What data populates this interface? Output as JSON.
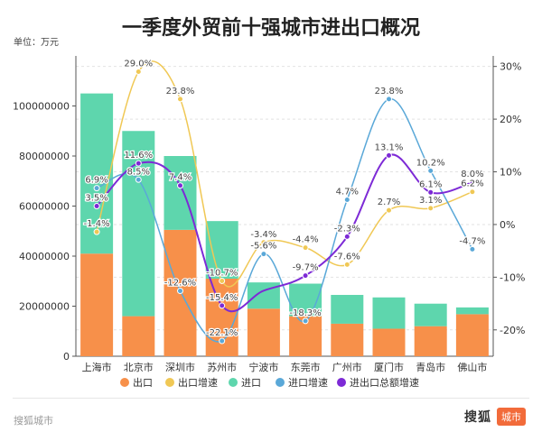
{
  "source": "搜狐城市",
  "brand": {
    "name": "搜狐",
    "tag": "城市"
  },
  "chart_data": {
    "type": "bar",
    "title": "一季度外贸前十强城市进出口概况",
    "unit_label": "单位：万元",
    "categories": [
      "上海市",
      "北京市",
      "深圳市",
      "苏州市",
      "宁波市",
      "东莞市",
      "广州市",
      "厦门市",
      "青岛市",
      "佛山市"
    ],
    "ylim": [
      0,
      120000000
    ],
    "y_ticks": [
      "0",
      "20000000",
      "40000000",
      "60000000",
      "80000000",
      "100000000"
    ],
    "y2lim": [
      -25,
      32
    ],
    "y2_ticks": [
      "-20%",
      "-10%",
      "0%",
      "10%",
      "20%",
      "30%"
    ],
    "colors": {
      "export": "#f7904a",
      "import": "#5ed6ad",
      "export_growth": "#f0c855",
      "import_growth": "#5aa8d8",
      "total_growth": "#7d2ad6"
    },
    "legend": [
      "出口",
      "出口增速",
      "进口",
      "进口增速",
      "进出口总额增速"
    ],
    "bars": [
      {
        "name": "出口",
        "values": [
          41000000,
          16000000,
          50500000,
          31000000,
          19000000,
          16000000,
          13000000,
          11000000,
          12000000,
          16800000
        ]
      },
      {
        "name": "进口",
        "values": [
          64000000,
          74000000,
          29500000,
          23000000,
          10500000,
          13000000,
          11500000,
          12500000,
          9000000,
          2700000
        ]
      }
    ],
    "lines": [
      {
        "name": "出口增速",
        "values": [
          -1.4,
          29.0,
          23.8,
          -10.7,
          -3.4,
          -4.4,
          -7.6,
          2.7,
          3.1,
          6.2
        ],
        "labels": [
          "-1.4%",
          "29.0%",
          "23.8%",
          "-10.7%",
          "-3.4%",
          "-4.4%",
          "-7.6%",
          "2.7%",
          "3.1%",
          "6.2%"
        ]
      },
      {
        "name": "进口增速",
        "values": [
          6.9,
          8.5,
          -12.6,
          -22.1,
          -5.6,
          -18.3,
          4.7,
          23.8,
          10.2,
          -4.7
        ],
        "labels": [
          "6.9%",
          "8.5%",
          "-12.6%",
          "-22.1%",
          "-5.6%",
          "-18.3%",
          "4.7%",
          "23.8%",
          "10.2%",
          "-4.7%"
        ]
      },
      {
        "name": "进出口总额增速",
        "values": [
          3.5,
          11.6,
          7.4,
          -15.4,
          null,
          -9.7,
          -2.3,
          13.1,
          6.1,
          8.0
        ],
        "labels": [
          "3.5%",
          "11.6%",
          "7.4%",
          "-15.4%",
          "",
          "-9.7%",
          "-2.3%",
          "13.1%",
          "6.1%",
          "8.0%"
        ]
      }
    ]
  }
}
